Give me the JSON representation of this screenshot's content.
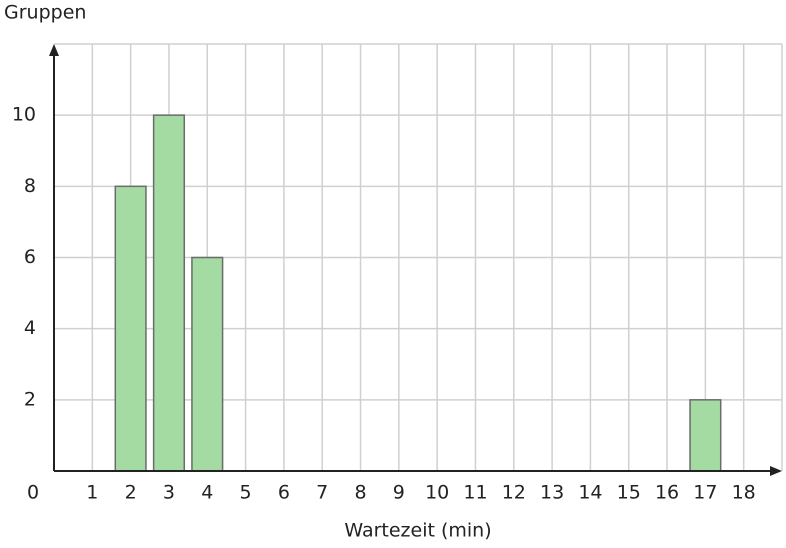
{
  "chart_data": {
    "type": "bar",
    "y_label": "Gruppen",
    "x_label": "Wartezeit (min)",
    "x": [
      2,
      3,
      4,
      17
    ],
    "values": [
      8,
      10,
      6,
      2
    ],
    "color": "#a3dba3",
    "edge_color": "#6b6b6b",
    "xlim": [
      0,
      19
    ],
    "ylim": [
      0,
      12
    ],
    "xticks": [
      0,
      1,
      2,
      3,
      4,
      5,
      6,
      7,
      8,
      9,
      10,
      11,
      12,
      13,
      14,
      15,
      16,
      17,
      18
    ],
    "yticks": [
      2,
      4,
      6,
      8,
      10
    ],
    "grid": true
  }
}
